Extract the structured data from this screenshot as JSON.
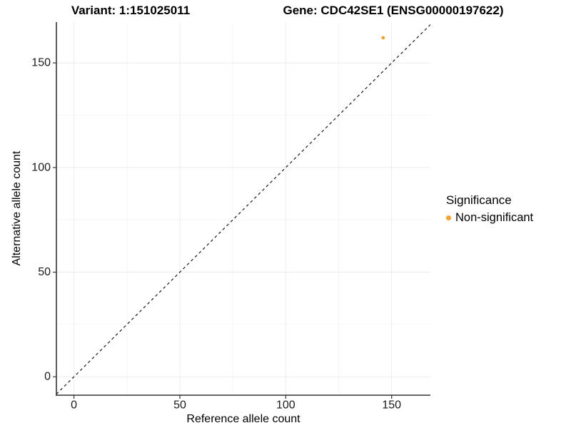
{
  "chart_data": {
    "type": "scatter",
    "title_left": "Variant: 1:151025011",
    "title_right": "Gene: CDC42SE1 (ENSG00000197622)",
    "xlabel": "Reference allele count",
    "ylabel": "Alternative allele count",
    "x_ticks": [
      0,
      50,
      100,
      150
    ],
    "y_ticks": [
      0,
      50,
      100,
      150
    ],
    "x_minor_ticks": [
      25,
      75,
      125
    ],
    "y_minor_ticks": [
      25,
      75,
      125
    ],
    "xlim": [
      -8.3,
      168.3
    ],
    "ylim": [
      -8.8,
      169.5
    ],
    "grid": "major+minor",
    "legend_title": "Significance",
    "legend_position": "right",
    "reference_line": {
      "type": "identity y=x",
      "style": "dashed",
      "color": "#1a1a1a"
    },
    "series": [
      {
        "name": "Non-significant",
        "color": "#F9A229",
        "points": [
          [
            146,
            162
          ]
        ]
      }
    ]
  },
  "style": {
    "background": "#FFFFFF",
    "grid_major_color": "#EBEBEB",
    "grid_minor_color": "#F5F5F5",
    "axis_line_color": "#333333",
    "tick_label_color": "#1a1a1a",
    "text_color": "#000000"
  }
}
